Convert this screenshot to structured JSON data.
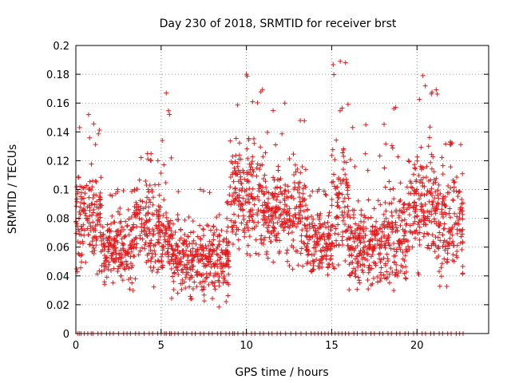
{
  "chart_data": {
    "type": "scatter",
    "title": "Day 230 of 2018, SRMTID for receiver brst",
    "xlabel": "GPS time / hours",
    "ylabel": "SRMTID / TECUs",
    "xlim": [
      0,
      24.2
    ],
    "ylim": [
      0,
      0.2
    ],
    "x_ticks": [
      0,
      5,
      10,
      15,
      20
    ],
    "x_tick_labels": [
      "0",
      "5",
      "10",
      "15",
      "20"
    ],
    "y_ticks": [
      0,
      0.02,
      0.04,
      0.06,
      0.08,
      0.1,
      0.12,
      0.14,
      0.16,
      0.18,
      0.2
    ],
    "y_tick_labels": [
      "0",
      "0.02",
      "0.04",
      "0.06",
      "0.08",
      "0.1",
      "0.12",
      "0.14",
      "0.16",
      "0.18",
      "0.2"
    ],
    "grid": true,
    "marker": "plus",
    "color": "#e41a1c",
    "series": [
      {
        "name": "SRMTID",
        "segments": [
          {
            "x_start": 0.0,
            "x_end": 1.5,
            "low": 0.035,
            "high": 0.125,
            "peak": 0.152
          },
          {
            "x_start": 1.5,
            "x_end": 3.4,
            "low": 0.022,
            "high": 0.095,
            "peak": 0.1
          },
          {
            "x_start": 3.4,
            "x_end": 5.0,
            "low": 0.03,
            "high": 0.12,
            "peak": 0.125
          },
          {
            "x_start": 5.0,
            "x_end": 5.6,
            "low": 0.03,
            "high": 0.1,
            "peak": 0.167
          },
          {
            "x_start": 5.6,
            "x_end": 9.0,
            "low": 0.012,
            "high": 0.09,
            "peak": 0.1
          },
          {
            "x_start": 9.0,
            "x_end": 11.0,
            "low": 0.04,
            "high": 0.15,
            "peak": 0.18
          },
          {
            "x_start": 11.0,
            "x_end": 13.5,
            "low": 0.04,
            "high": 0.13,
            "peak": 0.16
          },
          {
            "x_start": 13.5,
            "x_end": 15.0,
            "low": 0.03,
            "high": 0.095,
            "peak": 0.1
          },
          {
            "x_start": 15.0,
            "x_end": 16.0,
            "low": 0.03,
            "high": 0.15,
            "peak": 0.189
          },
          {
            "x_start": 16.0,
            "x_end": 18.0,
            "low": 0.02,
            "high": 0.1,
            "peak": 0.145
          },
          {
            "x_start": 18.0,
            "x_end": 19.5,
            "low": 0.02,
            "high": 0.12,
            "peak": 0.157
          },
          {
            "x_start": 19.5,
            "x_end": 21.2,
            "low": 0.03,
            "high": 0.15,
            "peak": 0.179
          },
          {
            "x_start": 21.2,
            "x_end": 22.7,
            "low": 0.018,
            "high": 0.13,
            "peak": 0.133
          }
        ],
        "zero_points_x": [
          0.1,
          0.2,
          0.3,
          0.5,
          0.7,
          0.9,
          1.0,
          1.3,
          1.5,
          1.8,
          2.0,
          2.2,
          2.5,
          2.8,
          3.0,
          3.2,
          3.5,
          3.7,
          4.0,
          4.3,
          4.5,
          4.8,
          5.0,
          5.2,
          5.3,
          5.5,
          5.6,
          5.8,
          6.0,
          6.3,
          6.5,
          6.8,
          7.0,
          7.3,
          7.5,
          7.8,
          8.0,
          8.3,
          8.5,
          8.8,
          9.0,
          9.2,
          9.3,
          9.5,
          9.8,
          10.0,
          10.3,
          10.5,
          10.8,
          11.0,
          11.3,
          11.5,
          11.8,
          12.0,
          12.3,
          12.6,
          12.9,
          13.2,
          13.5,
          13.8,
          14.0,
          14.2,
          14.4,
          14.6,
          14.8,
          15.0,
          15.2,
          15.4,
          15.6,
          15.8,
          16.0,
          16.3,
          16.5,
          16.8,
          17.0,
          17.3,
          17.5,
          17.8,
          18.0,
          18.3,
          18.5,
          18.8,
          19.0,
          19.3,
          19.5,
          19.8,
          20.0,
          20.3,
          20.5,
          20.8,
          21.0,
          21.3,
          21.5,
          21.8,
          22.0,
          22.3,
          22.5,
          22.7
        ]
      }
    ]
  }
}
